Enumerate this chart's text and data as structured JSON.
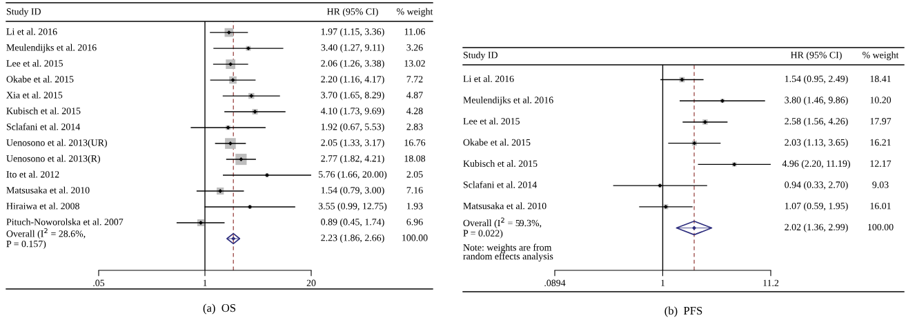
{
  "chart_data": [
    {
      "type": "scatter",
      "orientation": "horizontal",
      "title": "(a)  OS",
      "ylabel": "Study ID",
      "log": "x",
      "xlim": [
        0.05,
        20
      ],
      "xticks": [
        {
          "value": 0.05,
          "label": ".05"
        },
        1,
        20
      ],
      "tick_labels": "x",
      "categories": [
        "Li et al. 2016",
        "Meulendijks et al. 2016",
        "Lee et al. 2015",
        "Okabe et al. 2015",
        "Xia et al. 2015",
        "Kubisch et al. 2015",
        "Sclafani et al. 2014",
        "Uenosono et al. 2013(UR)",
        "Uenosono et al. 2013(R)",
        "Ito et al. 2012",
        "Matsusaka et al. 2010",
        "Hiraiwa et al. 2008",
        "Pituch-Noworolska et al. 2007",
        "Overall (I$^{2}$ = 28.6%,\nP = 0.157)"
      ],
      "annotations": [
        "HR (95% CI)",
        "% weight",
        "11.06",
        "3.26",
        "13.02",
        "7.72",
        "4.87",
        "4.28",
        "2.83",
        "16.76",
        "18.08",
        "2.05",
        "7.16",
        "1.93",
        "6.96",
        "100.00",
        "2.23 (1.86, 2.66)"
      ],
      "ref_lines": [
        {
          "axis": "x",
          "value": 1,
          "color": "#000000",
          "line_style": "solid"
        },
        {
          "axis": "x",
          "value": 2.23,
          "color": "#a0524f",
          "line_style": "dashed"
        }
      ],
      "series": [
        {
          "marker": "square",
          "color": "#bdbdbd",
          "values": [
            1.97,
            3.4,
            2.06,
            2.2,
            3.7,
            4.1,
            1.92,
            2.05,
            2.77,
            5.76,
            1.54,
            3.55,
            0.89,
            null
          ],
          "errors": [
            [
              1.15,
              3.36
            ],
            [
              1.27,
              9.11
            ],
            [
              1.26,
              3.38
            ],
            [
              1.16,
              4.17
            ],
            [
              1.65,
              8.29
            ],
            [
              1.73,
              9.69
            ],
            [
              0.67,
              5.53
            ],
            [
              1.33,
              3.17
            ],
            [
              1.82,
              4.21
            ],
            [
              1.66,
              20.0
            ],
            [
              0.79,
              3.0
            ],
            [
              0.99,
              12.75
            ],
            [
              0.45,
              1.74
            ],
            null
          ],
          "sizes": [
            0.61,
            0.18,
            0.72,
            0.43,
            0.27,
            0.24,
            0.16,
            0.93,
            1,
            0.11,
            0.4,
            0.11,
            0.38,
            null
          ],
          "value_labels": [
            "1.97 (1.15, 3.36)",
            "3.40 (1.27, 9.11)",
            "2.06 (1.26, 3.38)",
            "2.20 (1.16, 4.17)",
            "3.70 (1.65, 8.29)",
            "4.10 (1.73, 9.69)",
            "1.92 (0.67, 5.53)",
            "2.05 (1.33, 3.17)",
            "2.77 (1.82, 4.21)",
            "5.76 (1.66, 20.00)",
            "1.54 (0.79, 3.00)",
            "3.55 (0.99, 12.75)",
            "0.89 (0.45, 1.74)",
            null
          ]
        },
        {
          "marker": "diamond",
          "color": "#2e2e7e",
          "values": [
            null,
            null,
            null,
            null,
            null,
            null,
            null,
            null,
            null,
            null,
            null,
            null,
            null,
            2.23
          ],
          "errors": [
            null,
            null,
            null,
            null,
            null,
            null,
            null,
            null,
            null,
            null,
            null,
            null,
            null,
            [
              1.86,
              2.66
            ]
          ],
          "value_labels": [
            null,
            null,
            null,
            null,
            null,
            null,
            null,
            null,
            null,
            null,
            null,
            null,
            null,
            null
          ]
        }
      ]
    },
    {
      "type": "scatter",
      "orientation": "horizontal",
      "title": "(b)  PFS",
      "ylabel": "Study ID",
      "log": "x",
      "xlim": [
        0.0894,
        11.2
      ],
      "xticks": [
        {
          "value": 0.0894,
          "label": ".0894"
        },
        1,
        11.2
      ],
      "tick_labels": "x",
      "categories": [
        "Li et al. 2016",
        "Meulendijks et al. 2016",
        "Lee et al. 2015",
        "Okabe et al. 2015",
        "Kubisch et al. 2015",
        "Sclafani et al. 2014",
        "Matsusaka et al. 2010",
        "Overall (I$^{2}$ = 59.3%,\nP = 0.022)"
      ],
      "annotations": [
        "HR (95% CI)",
        "% weight",
        "18.41",
        "10.20",
        "17.97",
        "16.21",
        "12.17",
        "9.03",
        "16.01",
        "100.00",
        "2.02 (1.36, 2.99)",
        "Note: weights are from\nrandom effects analysis"
      ],
      "ref_lines": [
        {
          "axis": "x",
          "value": 1,
          "color": "#000000",
          "line_style": "solid"
        },
        {
          "axis": "x",
          "value": 2.02,
          "color": "#a0524f",
          "line_style": "dashed"
        }
      ],
      "series": [
        {
          "marker": "square",
          "color": "#bdbdbd",
          "values": [
            1.54,
            3.8,
            2.58,
            2.03,
            4.96,
            0.94,
            1.07,
            null
          ],
          "errors": [
            [
              0.95,
              2.49
            ],
            [
              1.46,
              9.86
            ],
            [
              1.56,
              4.26
            ],
            [
              1.13,
              3.65
            ],
            [
              2.2,
              11.19
            ],
            [
              0.33,
              2.7
            ],
            [
              0.59,
              1.95
            ],
            null
          ],
          "sizes": [
            1,
            0.55,
            0.98,
            0.88,
            0.66,
            0.49,
            0.87,
            null
          ],
          "value_labels": [
            "1.54 (0.95, 2.49)",
            "3.80 (1.46, 9.86)",
            "2.58 (1.56, 4.26)",
            "2.03 (1.13, 3.65)",
            "4.96 (2.20, 11.19)",
            "0.94 (0.33, 2.70)",
            "1.07 (0.59, 1.95)",
            null
          ]
        },
        {
          "marker": "diamond",
          "color": "#2e2e7e",
          "values": [
            null,
            null,
            null,
            null,
            null,
            null,
            null,
            2.02
          ],
          "errors": [
            null,
            null,
            null,
            null,
            null,
            null,
            null,
            [
              1.36,
              2.99
            ]
          ],
          "value_labels": [
            null,
            null,
            null,
            null,
            null,
            null,
            null,
            null
          ]
        }
      ]
    }
  ]
}
